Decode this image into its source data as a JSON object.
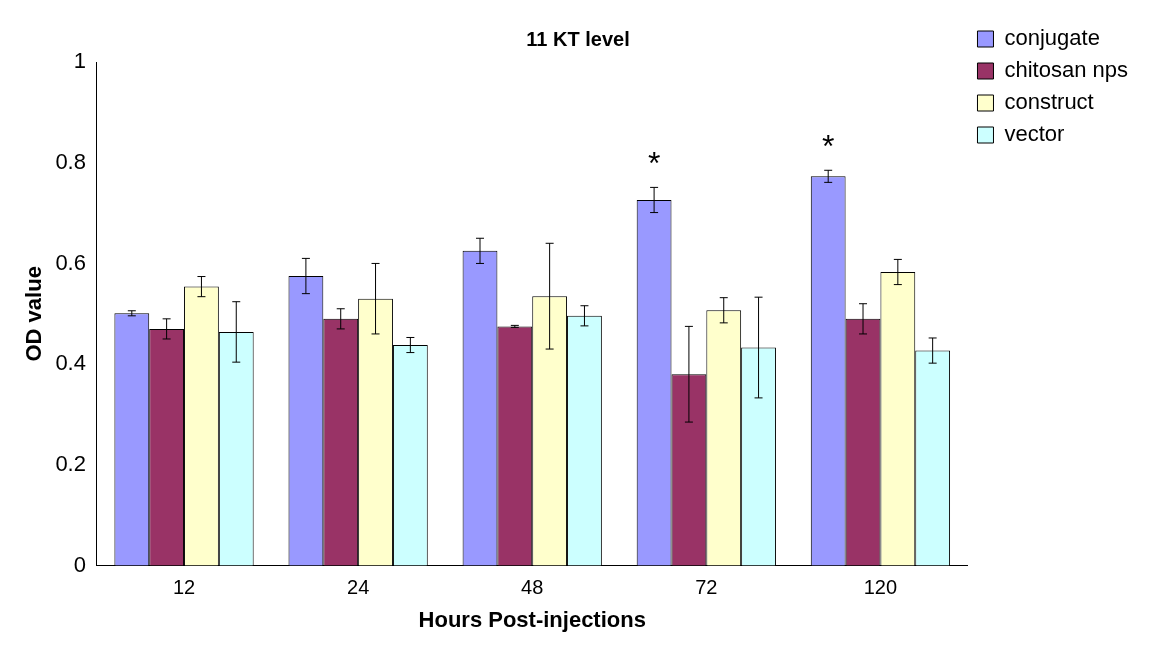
{
  "chart_data": {
    "type": "bar",
    "title": "11 KT level",
    "xlabel": "Hours Post-injections",
    "ylabel": "OD value",
    "categories": [
      "12",
      "24",
      "48",
      "72",
      "120"
    ],
    "series": [
      {
        "name": "conjugate",
        "color": "#9999ff",
        "values": [
          0.501,
          0.575,
          0.625,
          0.726,
          0.773
        ],
        "errors": [
          0.005,
          0.035,
          0.025,
          0.025,
          0.012
        ],
        "value_labels": [
          null,
          null,
          null,
          "*",
          "*"
        ]
      },
      {
        "name": "chitosan nps",
        "color": "#993366",
        "values": [
          0.47,
          0.49,
          0.475,
          0.38,
          0.49
        ],
        "errors": [
          0.02,
          0.02,
          0.002,
          0.095,
          0.03
        ]
      },
      {
        "name": "construct",
        "color": "#ffffcc",
        "values": [
          0.554,
          0.53,
          0.535,
          0.507,
          0.583
        ],
        "errors": [
          0.02,
          0.07,
          0.105,
          0.025,
          0.025
        ]
      },
      {
        "name": "vector",
        "color": "#ccffff",
        "values": [
          0.464,
          0.438,
          0.496,
          0.433,
          0.427
        ],
        "errors": [
          0.06,
          0.015,
          0.02,
          0.1,
          0.025
        ]
      }
    ],
    "ylim": [
      0,
      1
    ],
    "yticks": [
      0,
      {
        "value": 0.2,
        "label": "0.2"
      },
      {
        "value": 0.4,
        "label": "0.4"
      },
      {
        "value": 0.6,
        "label": "0.6"
      },
      {
        "value": 0.8,
        "label": "0.8"
      },
      1
    ],
    "grid": false,
    "legend": "top right"
  }
}
